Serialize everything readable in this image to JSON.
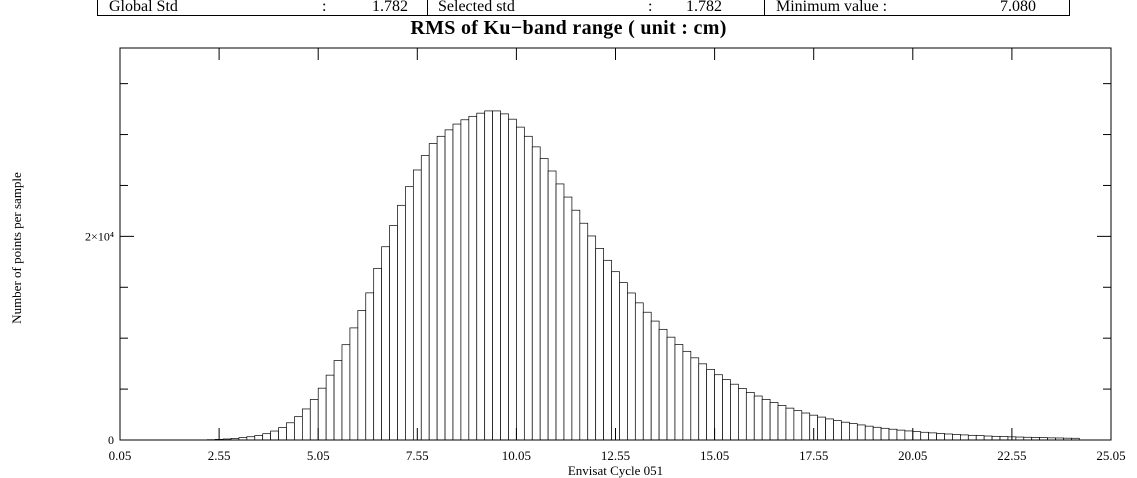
{
  "stats": {
    "global_std_label": "Global Std",
    "global_std_sep": ":",
    "global_std_value": "1.782",
    "selected_std_label": "Selected std",
    "selected_std_sep": ":",
    "selected_std_value": "1.782",
    "minimum_value_label": "Minimum value :",
    "minimum_value_value": "7.080"
  },
  "chart_data": {
    "type": "bar",
    "title": "RMS of Ku−band range  ( unit : cm)",
    "xlabel": "Envisat Cycle 051",
    "ylabel": "Number of points per sample",
    "xlim": [
      0.05,
      25.05
    ],
    "ylim": [
      0,
      38500
    ],
    "bin_width": 0.2,
    "first_bin_left": 0.05,
    "x_tick_labels": [
      "0.05",
      "2.55",
      "5.05",
      "7.55",
      "10.05",
      "12.55",
      "15.05",
      "17.55",
      "20.05",
      "22.55",
      "25.05"
    ],
    "y_tick_labels": [
      {
        "value": 0,
        "text": "0"
      },
      {
        "value": 20000,
        "text": "2×10⁴"
      }
    ],
    "y_minor_ticks": [
      5000,
      10000,
      15000,
      25000,
      30000,
      35000
    ],
    "grid": false,
    "legend": "none",
    "values": [
      0,
      0,
      0,
      0,
      0,
      0,
      0,
      0,
      0,
      0,
      0,
      30,
      60,
      100,
      160,
      230,
      320,
      440,
      620,
      880,
      1220,
      1690,
      2290,
      3050,
      3980,
      5090,
      6370,
      7800,
      9360,
      11010,
      12720,
      14450,
      16860,
      18980,
      21060,
      23050,
      24880,
      26520,
      27930,
      29110,
      29830,
      30460,
      31030,
      31450,
      31790,
      32100,
      32320,
      32320,
      32030,
      31510,
      30730,
      29830,
      28790,
      27640,
      26420,
      25150,
      23860,
      22570,
      21290,
      20040,
      18820,
      17650,
      16530,
      15460,
      14440,
      13470,
      12550,
      11680,
      10870,
      10100,
      9380,
      8710,
      8070,
      7480,
      6930,
      6410,
      5930,
      5480,
      5070,
      4680,
      4320,
      3990,
      3680,
      3390,
      3130,
      2880,
      2650,
      2440,
      2250,
      2070,
      1900,
      1750,
      1610,
      1480,
      1360,
      1250,
      1150,
      1060,
      970,
      890,
      820,
      760,
      700,
      640,
      590,
      550,
      500,
      460,
      430,
      390,
      360,
      340,
      310,
      290,
      270,
      250,
      230,
      210,
      200,
      180,
      170
    ]
  }
}
